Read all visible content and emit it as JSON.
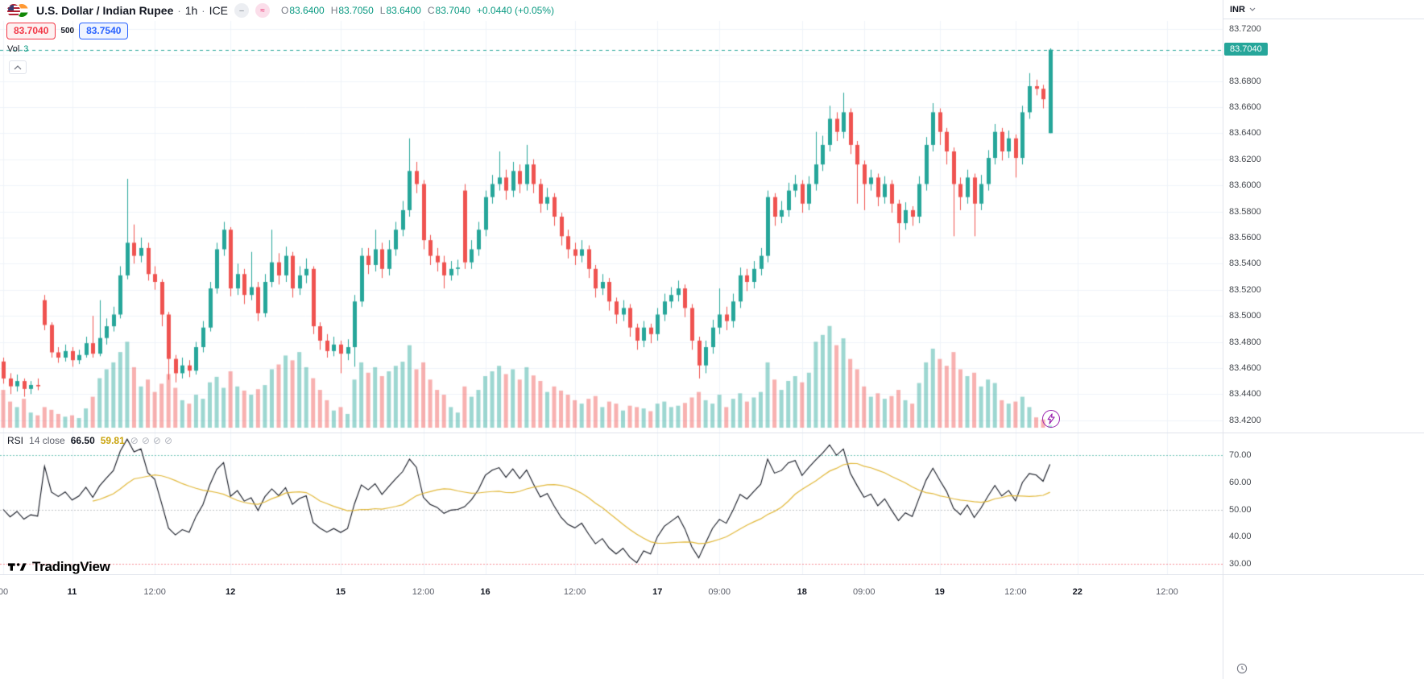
{
  "header": {
    "symbol": "U.S. Dollar / Indian Rupee",
    "dot": "·",
    "interval": "1h",
    "exchange": "ICE",
    "chip1": "–",
    "chip2": "≈",
    "ohlc": [
      {
        "k": "O",
        "v": "83.6400"
      },
      {
        "k": "H",
        "v": "83.7050"
      },
      {
        "k": "L",
        "v": "83.6400"
      },
      {
        "k": "C",
        "v": "83.7040"
      }
    ],
    "change": "+0.0440 (+0.05%)"
  },
  "trade_panel": {
    "sell": "83.7040",
    "spread": "500",
    "buy": "83.7540"
  },
  "volume_indicator": {
    "label": "Vol",
    "value": "3"
  },
  "rsi_indicator": {
    "name": "RSI",
    "params": "14 close",
    "value": "66.50",
    "ma_value": "59.81",
    "icons": [
      "⊘",
      "⊘",
      "⊘",
      "⊘"
    ]
  },
  "price_axis": {
    "currency": "INR",
    "last_price": "83.7040",
    "labels": [
      "83.7200",
      "83.6800",
      "83.6600",
      "83.6400",
      "83.6200",
      "83.6000",
      "83.5800",
      "83.5600",
      "83.5400",
      "83.5200",
      "83.5000",
      "83.4800",
      "83.4600",
      "83.4400",
      "83.4200"
    ]
  },
  "rsi_axis": {
    "labels": [
      "70.00",
      "60.00",
      "50.00",
      "40.00",
      "30.00"
    ]
  },
  "attribution": {
    "logo": "TradingView"
  },
  "colors": {
    "up": "#26a69a",
    "down": "#ef5350",
    "vol_up": "rgba(38,166,154,0.45)",
    "vol_down": "rgba(239,83,80,0.45)",
    "accent": "#089981",
    "sell": "#f23645",
    "buy": "#2962ff",
    "rsi_line": "#131722",
    "rsi_ma": "#e2b93b",
    "grid": "#f0f3fa",
    "axis_border": "#e0e3eb",
    "level70": "rgba(8,153,129,0.55)",
    "level50": "rgba(120,123,134,0.45)",
    "level30": "rgba(242,54,69,0.55)",
    "badge_bg": "#26a69a",
    "lightning": "#9c27b0"
  },
  "chart_data": {
    "type": "candlestick",
    "title": "U.S. Dollar / Indian Rupee, 1h, ICE",
    "price_range": {
      "min": 83.41,
      "max": 83.726,
      "grid_step": 0.02
    },
    "rsi_range": {
      "min": 25,
      "max": 80,
      "levels": [
        70,
        50,
        30
      ]
    },
    "last_price": 83.704,
    "rsi": {
      "period": 14,
      "source": "close",
      "value": 66.5,
      "ma_value": 59.81
    },
    "time_axis": [
      {
        "label": "00",
        "i": 0
      },
      {
        "label": "11",
        "i": 10
      },
      {
        "label": "12:00",
        "i": 22
      },
      {
        "label": "12",
        "i": 33
      },
      {
        "label": "15",
        "i": 49
      },
      {
        "label": "12:00",
        "i": 61
      },
      {
        "label": "16",
        "i": 70
      },
      {
        "label": "12:00",
        "i": 83
      },
      {
        "label": "17",
        "i": 95
      },
      {
        "label": "09:00",
        "i": 104
      },
      {
        "label": "18",
        "i": 116
      },
      {
        "label": "09:00",
        "i": 125
      },
      {
        "label": "19",
        "i": 136
      },
      {
        "label": "12:00",
        "i": 147
      },
      {
        "label": "22",
        "i": 156
      },
      {
        "label": "12:00",
        "i": 169
      }
    ],
    "candles": [
      [
        83.465,
        83.468,
        83.448,
        83.452,
        55
      ],
      [
        83.452,
        83.456,
        83.44,
        83.446,
        38
      ],
      [
        83.446,
        83.455,
        83.442,
        83.45,
        30
      ],
      [
        83.45,
        83.452,
        83.438,
        83.444,
        42
      ],
      [
        83.444,
        83.45,
        83.44,
        83.447,
        22
      ],
      [
        83.447,
        83.452,
        83.443,
        83.446,
        18
      ],
      [
        83.512,
        83.516,
        83.489,
        83.493,
        30
      ],
      [
        83.493,
        83.495,
        83.468,
        83.472,
        26
      ],
      [
        83.472,
        83.476,
        83.464,
        83.468,
        20
      ],
      [
        83.468,
        83.478,
        83.465,
        83.473,
        16
      ],
      [
        83.473,
        83.476,
        83.461,
        83.466,
        18
      ],
      [
        83.466,
        83.474,
        83.463,
        83.47,
        14
      ],
      [
        83.47,
        83.484,
        83.468,
        83.479,
        28
      ],
      [
        83.479,
        83.5,
        83.468,
        83.471,
        45
      ],
      [
        83.471,
        83.512,
        83.469,
        83.483,
        72
      ],
      [
        83.483,
        83.498,
        83.478,
        83.492,
        85
      ],
      [
        83.492,
        83.507,
        83.488,
        83.501,
        95
      ],
      [
        83.501,
        83.538,
        83.498,
        83.531,
        110
      ],
      [
        83.531,
        83.605,
        83.528,
        83.556,
        125
      ],
      [
        83.556,
        83.57,
        83.54,
        83.546,
        88
      ],
      [
        83.546,
        83.56,
        83.541,
        83.552,
        60
      ],
      [
        83.552,
        83.556,
        83.527,
        83.532,
        70
      ],
      [
        83.532,
        83.538,
        83.52,
        83.526,
        52
      ],
      [
        83.526,
        83.528,
        83.492,
        83.501,
        64
      ],
      [
        83.501,
        83.503,
        83.451,
        83.467,
        78
      ],
      [
        83.467,
        83.47,
        83.449,
        83.456,
        58
      ],
      [
        83.456,
        83.468,
        83.452,
        83.462,
        40
      ],
      [
        83.462,
        83.466,
        83.453,
        83.458,
        35
      ],
      [
        83.458,
        83.48,
        83.455,
        83.476,
        48
      ],
      [
        83.476,
        83.496,
        83.472,
        83.491,
        42
      ],
      [
        83.491,
        83.526,
        83.488,
        83.521,
        66
      ],
      [
        83.521,
        83.556,
        83.517,
        83.551,
        74
      ],
      [
        83.551,
        83.572,
        83.546,
        83.566,
        58
      ],
      [
        83.566,
        83.568,
        83.515,
        83.521,
        82
      ],
      [
        83.521,
        83.54,
        83.516,
        83.532,
        60
      ],
      [
        83.532,
        83.536,
        83.509,
        83.516,
        54
      ],
      [
        83.516,
        83.549,
        83.512,
        83.522,
        48
      ],
      [
        83.522,
        83.526,
        83.496,
        83.502,
        56
      ],
      [
        83.502,
        83.532,
        83.499,
        83.526,
        62
      ],
      [
        83.526,
        83.566,
        83.522,
        83.541,
        85
      ],
      [
        83.541,
        83.548,
        83.524,
        83.531,
        92
      ],
      [
        83.531,
        83.553,
        83.526,
        83.546,
        105
      ],
      [
        83.546,
        83.549,
        83.514,
        83.521,
        98
      ],
      [
        83.521,
        83.538,
        83.516,
        83.531,
        110
      ],
      [
        83.531,
        83.544,
        83.525,
        83.536,
        88
      ],
      [
        83.536,
        83.538,
        83.486,
        83.492,
        72
      ],
      [
        83.492,
        83.495,
        83.474,
        83.481,
        55
      ],
      [
        83.481,
        83.486,
        83.468,
        83.473,
        40
      ],
      [
        83.473,
        83.484,
        83.469,
        83.478,
        25
      ],
      [
        83.478,
        83.481,
        83.456,
        83.471,
        30
      ],
      [
        83.471,
        83.482,
        83.466,
        83.476,
        20
      ],
      [
        83.476,
        83.516,
        83.461,
        83.511,
        70
      ],
      [
        83.511,
        83.552,
        83.507,
        83.546,
        95
      ],
      [
        83.546,
        83.552,
        83.532,
        83.539,
        80
      ],
      [
        83.539,
        83.566,
        83.534,
        83.551,
        88
      ],
      [
        83.551,
        83.556,
        83.529,
        83.536,
        75
      ],
      [
        83.536,
        83.558,
        83.531,
        83.551,
        82
      ],
      [
        83.551,
        83.572,
        83.546,
        83.566,
        90
      ],
      [
        83.566,
        83.588,
        83.561,
        83.581,
        96
      ],
      [
        83.581,
        83.636,
        83.576,
        83.611,
        120
      ],
      [
        83.611,
        83.618,
        83.594,
        83.601,
        85
      ],
      [
        83.601,
        83.604,
        83.551,
        83.558,
        95
      ],
      [
        83.558,
        83.562,
        83.539,
        83.546,
        70
      ],
      [
        83.546,
        83.552,
        83.534,
        83.541,
        55
      ],
      [
        83.541,
        83.546,
        83.521,
        83.531,
        48
      ],
      [
        83.531,
        83.542,
        83.527,
        83.536,
        30
      ],
      [
        83.536,
        83.543,
        83.531,
        83.537,
        22
      ],
      [
        83.596,
        83.601,
        83.536,
        83.541,
        60
      ],
      [
        83.541,
        83.558,
        83.536,
        83.551,
        45
      ],
      [
        83.551,
        83.572,
        83.546,
        83.566,
        55
      ],
      [
        83.566,
        83.596,
        83.561,
        83.591,
        75
      ],
      [
        83.591,
        83.608,
        83.586,
        83.601,
        82
      ],
      [
        83.601,
        83.626,
        83.596,
        83.606,
        90
      ],
      [
        83.606,
        83.612,
        83.589,
        83.596,
        78
      ],
      [
        83.596,
        83.618,
        83.591,
        83.611,
        85
      ],
      [
        83.611,
        83.616,
        83.594,
        83.601,
        70
      ],
      [
        83.601,
        83.631,
        83.596,
        83.616,
        88
      ],
      [
        83.616,
        83.62,
        83.594,
        83.601,
        76
      ],
      [
        83.601,
        83.605,
        83.579,
        83.586,
        68
      ],
      [
        83.586,
        83.598,
        83.581,
        83.591,
        52
      ],
      [
        83.591,
        83.594,
        83.569,
        83.576,
        60
      ],
      [
        83.576,
        83.579,
        83.554,
        83.561,
        54
      ],
      [
        83.561,
        83.566,
        83.544,
        83.551,
        48
      ],
      [
        83.551,
        83.556,
        83.539,
        83.546,
        40
      ],
      [
        83.546,
        83.558,
        83.541,
        83.551,
        35
      ],
      [
        83.551,
        83.554,
        83.529,
        83.536,
        42
      ],
      [
        83.536,
        83.539,
        83.514,
        83.521,
        46
      ],
      [
        83.521,
        83.532,
        83.516,
        83.526,
        30
      ],
      [
        83.526,
        83.529,
        83.504,
        83.511,
        38
      ],
      [
        83.511,
        83.514,
        83.494,
        83.501,
        35
      ],
      [
        83.501,
        83.512,
        83.496,
        83.506,
        25
      ],
      [
        83.506,
        83.509,
        83.484,
        83.491,
        32
      ],
      [
        83.491,
        83.494,
        83.474,
        83.481,
        30
      ],
      [
        83.481,
        83.496,
        83.476,
        83.491,
        28
      ],
      [
        83.491,
        83.494,
        83.479,
        83.486,
        24
      ],
      [
        83.486,
        83.506,
        83.481,
        83.501,
        35
      ],
      [
        83.501,
        83.517,
        83.496,
        83.511,
        38
      ],
      [
        83.511,
        83.522,
        83.506,
        83.516,
        30
      ],
      [
        83.516,
        83.527,
        83.511,
        83.521,
        32
      ],
      [
        83.521,
        83.524,
        83.499,
        83.506,
        36
      ],
      [
        83.506,
        83.509,
        83.474,
        83.481,
        44
      ],
      [
        83.481,
        83.484,
        83.452,
        83.462,
        52
      ],
      [
        83.462,
        83.481,
        83.456,
        83.476,
        40
      ],
      [
        83.476,
        83.497,
        83.471,
        83.491,
        35
      ],
      [
        83.491,
        83.521,
        83.486,
        83.501,
        48
      ],
      [
        83.501,
        83.507,
        83.489,
        83.496,
        30
      ],
      [
        83.496,
        83.517,
        83.491,
        83.511,
        42
      ],
      [
        83.511,
        83.537,
        83.506,
        83.531,
        50
      ],
      [
        83.531,
        83.536,
        83.519,
        83.526,
        38
      ],
      [
        83.526,
        83.542,
        83.521,
        83.536,
        44
      ],
      [
        83.536,
        83.552,
        83.531,
        83.546,
        52
      ],
      [
        83.546,
        83.596,
        83.541,
        83.591,
        95
      ],
      [
        83.591,
        83.594,
        83.569,
        83.576,
        70
      ],
      [
        83.576,
        83.588,
        83.571,
        83.581,
        55
      ],
      [
        83.581,
        83.602,
        83.576,
        83.596,
        68
      ],
      [
        83.596,
        83.608,
        83.591,
        83.601,
        75
      ],
      [
        83.601,
        83.604,
        83.579,
        83.586,
        66
      ],
      [
        83.586,
        83.607,
        83.581,
        83.601,
        80
      ],
      [
        83.601,
        83.641,
        83.596,
        83.616,
        125
      ],
      [
        83.616,
        83.638,
        83.611,
        83.631,
        135
      ],
      [
        83.631,
        83.661,
        83.626,
        83.651,
        148
      ],
      [
        83.651,
        83.656,
        83.634,
        83.641,
        120
      ],
      [
        83.641,
        83.671,
        83.636,
        83.656,
        130
      ],
      [
        83.656,
        83.659,
        83.624,
        83.631,
        100
      ],
      [
        83.631,
        83.634,
        83.586,
        83.616,
        85
      ],
      [
        83.616,
        83.619,
        83.581,
        83.601,
        60
      ],
      [
        83.601,
        83.612,
        83.596,
        83.606,
        45
      ],
      [
        83.606,
        83.609,
        83.584,
        83.591,
        50
      ],
      [
        83.591,
        83.607,
        83.586,
        83.601,
        42
      ],
      [
        83.601,
        83.604,
        83.579,
        83.586,
        46
      ],
      [
        83.586,
        83.589,
        83.556,
        83.571,
        55
      ],
      [
        83.571,
        83.587,
        83.566,
        83.581,
        40
      ],
      [
        83.581,
        83.584,
        83.569,
        83.576,
        35
      ],
      [
        83.576,
        83.607,
        83.571,
        83.601,
        65
      ],
      [
        83.601,
        83.637,
        83.596,
        83.631,
        95
      ],
      [
        83.631,
        83.663,
        83.626,
        83.656,
        115
      ],
      [
        83.656,
        83.659,
        83.631,
        83.641,
        100
      ],
      [
        83.641,
        83.644,
        83.616,
        83.626,
        90
      ],
      [
        83.626,
        83.629,
        83.561,
        83.601,
        110
      ],
      [
        83.601,
        83.606,
        83.581,
        83.591,
        85
      ],
      [
        83.591,
        83.612,
        83.586,
        83.606,
        75
      ],
      [
        83.606,
        83.609,
        83.561,
        83.586,
        80
      ],
      [
        83.586,
        83.608,
        83.581,
        83.601,
        60
      ],
      [
        83.601,
        83.627,
        83.596,
        83.621,
        70
      ],
      [
        83.621,
        83.647,
        83.616,
        83.641,
        65
      ],
      [
        83.641,
        83.644,
        83.619,
        83.626,
        40
      ],
      [
        83.626,
        83.642,
        83.621,
        83.636,
        35
      ],
      [
        83.636,
        83.639,
        83.606,
        83.621,
        38
      ],
      [
        83.621,
        83.661,
        83.616,
        83.656,
        45
      ],
      [
        83.656,
        83.686,
        83.651,
        83.676,
        30
      ],
      [
        83.676,
        83.681,
        83.669,
        83.674,
        15
      ],
      [
        83.674,
        83.677,
        83.659,
        83.666,
        12
      ],
      [
        83.64,
        83.705,
        83.64,
        83.704,
        3
      ]
    ]
  }
}
